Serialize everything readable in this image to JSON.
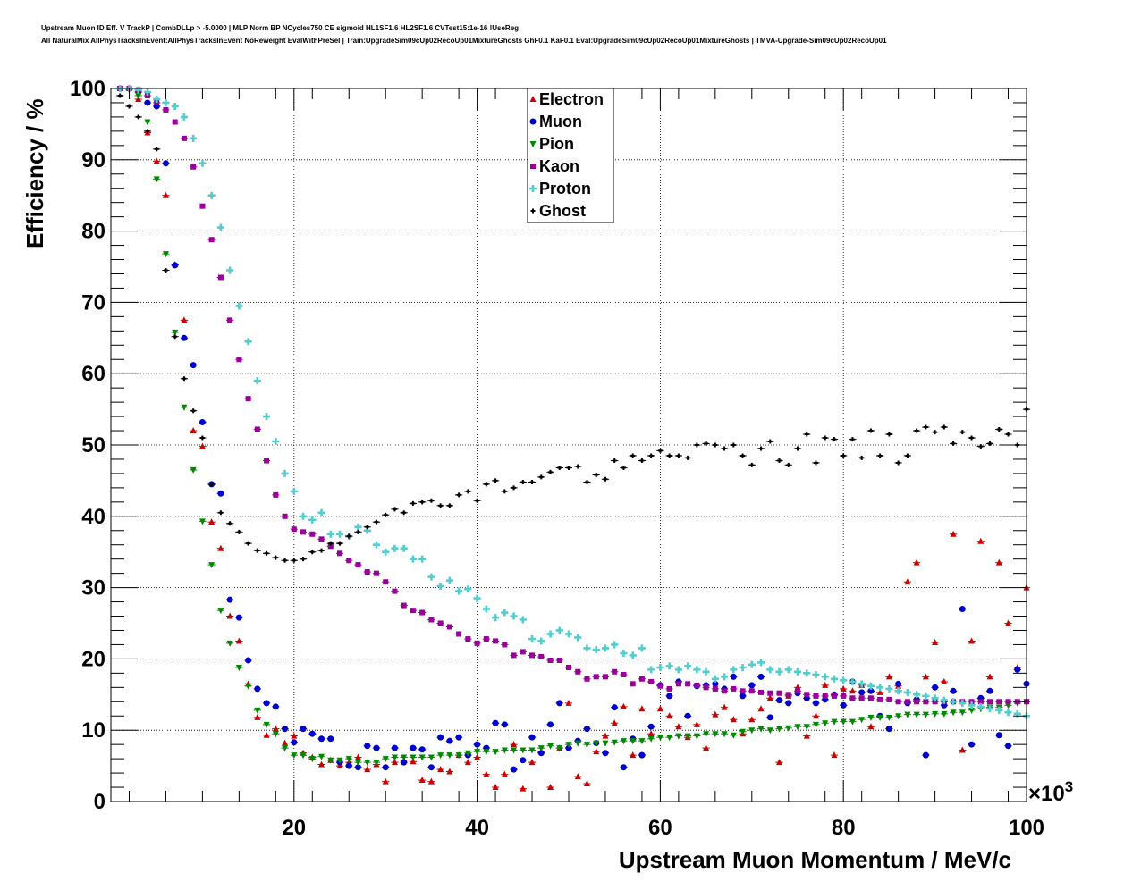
{
  "header": {
    "line1": "Upstream Muon ID Eff. V TrackP | CombDLLp > -5.0000 | MLP Norm BP NCycles750 CE sigmoid HL1SF1.6 HL2SF1.6 CVTest15:1e-16 !UseReg",
    "line2": "All NaturalMix AllPhysTracksInEvent:AllPhysTracksInEvent NoReweight EvalWithPreSel | Train:UpgradeSim09cUp02RecoUp01MixtureGhosts GhF0.1 KaF0.1 Eval:UpgradeSim09cUp02RecoUp01MixtureGhosts | TMVA-Upgrade-Sim09cUp02RecoUp01"
  },
  "chart_data": {
    "type": "scatter",
    "xlabel": "Upstream Muon Momentum / MeV/c",
    "ylabel": "Efficiency / %",
    "x_multiplier": "×10",
    "x_multiplier_exp": "3",
    "xlim": [
      0,
      100000
    ],
    "ylim": [
      0,
      100
    ],
    "xticks": [
      20000,
      40000,
      60000,
      80000,
      100000
    ],
    "xtick_labels": [
      "20",
      "40",
      "60",
      "80",
      "100"
    ],
    "yticks": [
      0,
      10,
      20,
      30,
      40,
      50,
      60,
      70,
      80,
      90,
      100
    ],
    "ytick_labels": [
      "0",
      "10",
      "20",
      "30",
      "40",
      "50",
      "60",
      "70",
      "80",
      "90",
      "100"
    ],
    "grid": true,
    "legend_position": "top-center",
    "x": [
      1000,
      2000,
      3000,
      4000,
      5000,
      6000,
      7000,
      8000,
      9000,
      10000,
      11000,
      12000,
      13000,
      14000,
      15000,
      16000,
      17000,
      18000,
      19000,
      20000,
      21000,
      22000,
      23000,
      24000,
      25000,
      26000,
      27000,
      28000,
      29000,
      30000,
      31000,
      32000,
      33000,
      34000,
      35000,
      36000,
      37000,
      38000,
      39000,
      40000,
      41000,
      42000,
      43000,
      44000,
      45000,
      46000,
      47000,
      48000,
      49000,
      50000,
      51000,
      52000,
      53000,
      54000,
      55000,
      56000,
      57000,
      58000,
      59000,
      60000,
      61000,
      62000,
      63000,
      64000,
      65000,
      66000,
      67000,
      68000,
      69000,
      70000,
      71000,
      72000,
      73000,
      74000,
      75000,
      76000,
      77000,
      78000,
      79000,
      80000,
      81000,
      82000,
      83000,
      84000,
      85000,
      86000,
      87000,
      88000,
      89000,
      90000,
      91000,
      92000,
      93000,
      94000,
      95000,
      96000,
      97000,
      98000,
      99000,
      100000
    ],
    "series": [
      {
        "name": "Electron",
        "color": "#cc0000",
        "marker": "triangle-up",
        "values": [
          100,
          100,
          98.5,
          93.8,
          89.8,
          85,
          75.3,
          67.5,
          52,
          49.8,
          39.2,
          35.5,
          26,
          22.5,
          16.5,
          11.8,
          9.3,
          10.2,
          8.2,
          9.2,
          6.8,
          6.2,
          5.2,
          5.8,
          5,
          5.5,
          6.2,
          4.5,
          5.2,
          2.8,
          5.5,
          5.8,
          5.6,
          3,
          2.8,
          4.5,
          4.2,
          6.5,
          5.5,
          6.2,
          3.8,
          2,
          3.8,
          8,
          1.8,
          5.5,
          7,
          2,
          7.5,
          13.8,
          3.5,
          2.5,
          7,
          9.2,
          11,
          13.3,
          6.5,
          13,
          9.5,
          13,
          12,
          10.5,
          9,
          10.8,
          7.5,
          12.2,
          13.2,
          11.5,
          9.5,
          11.5,
          13,
          14.5,
          5.5,
          14.8,
          16,
          9.2,
          12,
          16.3,
          6.5,
          15.8,
          15.5,
          16.3,
          10.5,
          15.3,
          17.5,
          16.2,
          30.8,
          33.5,
          17.5,
          22.3,
          16.8,
          37.5,
          7.2,
          22.5,
          36.5,
          17.5,
          33.5,
          25,
          18.8,
          30
        ]
      },
      {
        "name": "Muon",
        "color": "#0000cc",
        "marker": "circle",
        "values": [
          100,
          100,
          99.5,
          98,
          97.5,
          89.5,
          75.2,
          65,
          61.2,
          53.2,
          44.5,
          43.2,
          28.3,
          25.8,
          19.8,
          15.8,
          13.8,
          13.3,
          10.2,
          8.3,
          10.2,
          9.5,
          8.8,
          8.8,
          5.5,
          5,
          4.8,
          7.8,
          7.5,
          4.8,
          7.5,
          5.5,
          7.5,
          7.3,
          4.8,
          9,
          8.5,
          9,
          6.5,
          8,
          7.5,
          11,
          10.8,
          4.5,
          5.8,
          9,
          6.8,
          10.8,
          13.8,
          7.5,
          8.5,
          10.2,
          8.2,
          6.8,
          13.2,
          4.8,
          8.8,
          6.5,
          10.5,
          16.3,
          14.8,
          16.8,
          12,
          16.2,
          16.3,
          16.5,
          15.8,
          17.5,
          14.8,
          16.3,
          17.5,
          11.8,
          14.2,
          13.8,
          15.2,
          14.5,
          13.8,
          14.3,
          15,
          13.5,
          16.8,
          15.3,
          15.5,
          12,
          10.2,
          16.5,
          13.8,
          14.3,
          6.5,
          16,
          13.5,
          15.5,
          27,
          8,
          14.5,
          15.5,
          9.3,
          7.8,
          18.5,
          16.5
        ]
      },
      {
        "name": "Pion",
        "color": "#008800",
        "marker": "triangle-down",
        "values": [
          100,
          99.8,
          99,
          95.3,
          87.3,
          76.8,
          65.8,
          55.3,
          46.5,
          39.3,
          33.2,
          26.8,
          22.2,
          18.8,
          16.2,
          12.8,
          10.8,
          9.5,
          7.5,
          6.5,
          6.5,
          6,
          6.3,
          5.8,
          5.8,
          6,
          5.5,
          5.5,
          5.5,
          6,
          6.2,
          6.2,
          6.2,
          6.2,
          6.2,
          6.5,
          6.5,
          6.5,
          6.8,
          7,
          7,
          7,
          7.2,
          7.2,
          7.2,
          7.2,
          7.5,
          7.8,
          7.5,
          8,
          8.2,
          8,
          8.2,
          8.2,
          8.3,
          8.5,
          8.5,
          8.5,
          8.8,
          9,
          9,
          9.2,
          9.2,
          9.2,
          9.5,
          9.5,
          9.5,
          9.3,
          9.8,
          10,
          10.2,
          10,
          10.2,
          10.3,
          10.5,
          10.5,
          10.8,
          11,
          11.2,
          11.2,
          11.2,
          11.5,
          11.8,
          11.8,
          11.8,
          12,
          12.2,
          12.2,
          12.2,
          12.3,
          12.3,
          12.5,
          12.5,
          12.8,
          13,
          13.2,
          13.2,
          13.5,
          13.8,
          14
        ]
      },
      {
        "name": "Kaon",
        "color": "#990099",
        "marker": "square",
        "values": [
          100,
          100,
          99.8,
          99,
          98,
          97,
          95.3,
          93,
          89,
          83.5,
          78.8,
          73.5,
          67.5,
          62,
          56.5,
          52.2,
          47.8,
          43,
          40,
          38.2,
          37.8,
          37.5,
          36.8,
          35.8,
          34.8,
          33.8,
          33.2,
          32.2,
          32,
          30.8,
          29.5,
          27.5,
          26.8,
          26.5,
          25.5,
          25,
          24.5,
          23.5,
          22.8,
          22.2,
          22.8,
          22.5,
          22,
          20.5,
          21,
          20.5,
          20.3,
          19.8,
          19.8,
          18.8,
          18.2,
          17.2,
          17.5,
          17.5,
          18.2,
          17.8,
          16.5,
          17.2,
          16.8,
          16.2,
          15.8,
          16.5,
          16.5,
          16.3,
          16,
          15.8,
          15.5,
          15.8,
          15.5,
          15.5,
          15.3,
          15.2,
          15.2,
          15,
          15.5,
          15,
          14.8,
          14.8,
          14.8,
          14.8,
          14.5,
          14.5,
          14.5,
          14.3,
          14.3,
          14,
          14,
          14,
          14,
          14,
          14,
          14,
          14,
          14,
          14,
          14,
          14,
          14,
          14,
          14
        ]
      },
      {
        "name": "Proton",
        "color": "#55cccc",
        "marker": "cross",
        "values": [
          100,
          100,
          99.8,
          99.5,
          98.5,
          98,
          97.5,
          96,
          93,
          89.5,
          85,
          80.5,
          74.5,
          69.5,
          64.5,
          59,
          54,
          50.5,
          46,
          43.5,
          40,
          39.5,
          40.5,
          37.5,
          37.5,
          37.2,
          38.5,
          38,
          36,
          35,
          35.5,
          35.5,
          34,
          34,
          31.5,
          30.2,
          31,
          29.5,
          29.8,
          28.5,
          27,
          25.8,
          26.5,
          26,
          25.5,
          22.8,
          22.5,
          23.5,
          24,
          23.5,
          23,
          21.5,
          21.3,
          21.5,
          22,
          20.8,
          20.5,
          21.5,
          18.5,
          18.8,
          19,
          18.5,
          19,
          18.5,
          18.2,
          17.2,
          17.5,
          18.5,
          18.8,
          19.2,
          19.5,
          18.5,
          18.2,
          18.5,
          18.2,
          18,
          17.8,
          17.5,
          17.2,
          17,
          16.8,
          16.5,
          16.2,
          16,
          15.8,
          15.5,
          15.3,
          15,
          14.8,
          14.5,
          14.2,
          14,
          13.8,
          13.5,
          13.3,
          13,
          12.8,
          12.5,
          12.3,
          12
        ]
      },
      {
        "name": "Ghost",
        "color": "#000000",
        "marker": "star",
        "values": [
          99,
          97.5,
          96,
          94,
          91.5,
          74.5,
          65.2,
          59.3,
          54.8,
          51,
          44.5,
          40.5,
          39,
          37.8,
          36.2,
          35.2,
          34.8,
          34.2,
          33.8,
          33.8,
          34,
          35,
          35.2,
          36.2,
          36.2,
          37.2,
          37.8,
          38.5,
          39.2,
          40.2,
          41,
          40.5,
          41.8,
          42,
          42.2,
          41.5,
          41.5,
          43,
          43.5,
          42.2,
          44.5,
          45,
          43.5,
          44,
          44.8,
          44.8,
          45.5,
          46.2,
          46.8,
          46.8,
          47,
          44.8,
          45.8,
          45.2,
          47.8,
          46.8,
          48.5,
          47.8,
          48.5,
          49.2,
          48.5,
          48.5,
          48.2,
          50,
          50.2,
          50,
          49.5,
          50,
          48.5,
          47.2,
          49.5,
          50.5,
          47.8,
          47.2,
          49.5,
          51.5,
          47.5,
          51,
          50.8,
          48.5,
          50.8,
          48.2,
          52,
          48.5,
          51.5,
          47.5,
          48.5,
          52,
          52.5,
          51.8,
          52.5,
          50.2,
          51.8,
          51,
          49.8,
          50.2,
          52.2,
          51.5,
          50,
          55
        ]
      }
    ]
  }
}
